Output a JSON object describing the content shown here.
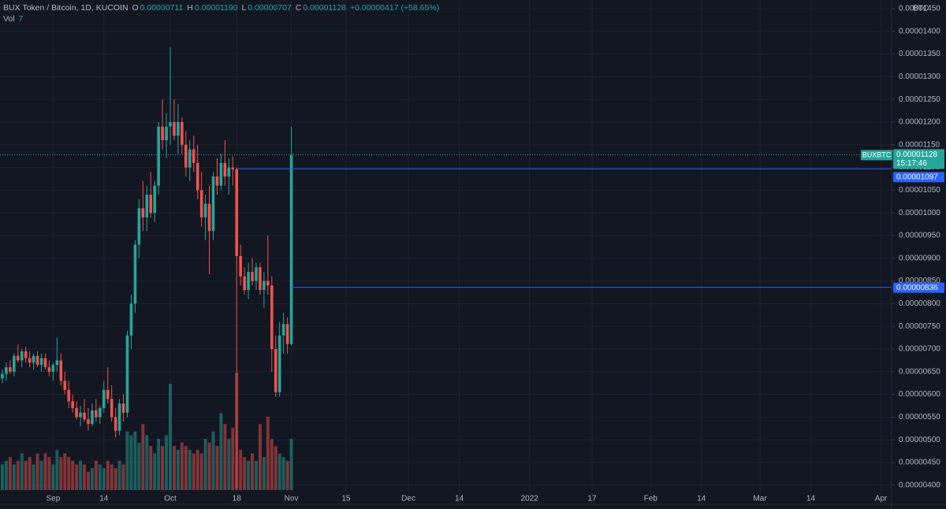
{
  "header": {
    "symbol": "BUX Token / Bitcoin, 1D, KUCOIN",
    "ohlc": [
      {
        "key": "O",
        "value": "0.00000711"
      },
      {
        "key": "H",
        "value": "0.00001190"
      },
      {
        "key": "L",
        "value": "0.00000707"
      },
      {
        "key": "C",
        "value": "0.00001128"
      }
    ],
    "change": "+0.00000417 (+58.65%)",
    "volume_label": "Vol",
    "volume_value": "7"
  },
  "chart_data": {
    "type": "candlestick",
    "unit": "BTC",
    "up_color": "#26a69a",
    "down_color": "#ef5350",
    "grid": true,
    "xlim": [
      -0.6,
      227.7
    ],
    "xticks": [
      {
        "value": 13,
        "label": "Sep"
      },
      {
        "value": 26,
        "label": "14"
      },
      {
        "value": 43,
        "label": "Oct"
      },
      {
        "value": 60,
        "label": "18"
      },
      {
        "value": 74,
        "label": "Nov"
      },
      {
        "value": 88,
        "label": "15"
      },
      {
        "value": 104,
        "label": "Dec"
      },
      {
        "value": 117,
        "label": "14"
      },
      {
        "value": 135,
        "label": "2022"
      },
      {
        "value": 151,
        "label": "17"
      },
      {
        "value": 166,
        "label": "Feb"
      },
      {
        "value": 179,
        "label": "14"
      },
      {
        "value": 194,
        "label": "Mar"
      },
      {
        "value": 207,
        "label": "14"
      },
      {
        "value": 225,
        "label": "Apr"
      }
    ],
    "ylim": [
      3.58e-06,
      1.469e-05
    ],
    "yticks": [
      {
        "value": 4e-06,
        "label": "0.00000400"
      },
      {
        "value": 4.5e-06,
        "label": "0.00000450"
      },
      {
        "value": 5e-06,
        "label": "0.00000500"
      },
      {
        "value": 5.5e-06,
        "label": "0.00000550"
      },
      {
        "value": 6e-06,
        "label": "0.00000600"
      },
      {
        "value": 6.5e-06,
        "label": "0.00000650"
      },
      {
        "value": 7e-06,
        "label": "0.00000700"
      },
      {
        "value": 7.5e-06,
        "label": "0.00000750"
      },
      {
        "value": 8e-06,
        "label": "0.00000800"
      },
      {
        "value": 8.5e-06,
        "label": "0.00000850"
      },
      {
        "value": 9e-06,
        "label": "0.00000900"
      },
      {
        "value": 9.5e-06,
        "label": "0.00000950"
      },
      {
        "value": 1e-05,
        "label": "0.00001000"
      },
      {
        "value": 1.05e-05,
        "label": "0.00001050"
      },
      {
        "value": 1.1e-05,
        "label": "0.00001100"
      },
      {
        "value": 1.15e-05,
        "label": "0.00001150"
      },
      {
        "value": 1.2e-05,
        "label": "0.00001200"
      },
      {
        "value": 1.25e-05,
        "label": "0.00001250"
      },
      {
        "value": 1.3e-05,
        "label": "0.00001300"
      },
      {
        "value": 1.35e-05,
        "label": "0.00001350"
      },
      {
        "value": 1.4e-05,
        "label": "0.00001400"
      },
      {
        "value": 1.45e-05,
        "label": "0.00001450"
      }
    ],
    "open": [
      6.35e-06,
      6.45e-06,
      6.6e-06,
      6.5e-06,
      6.85e-06,
      6.75e-06,
      6.95e-06,
      6.8e-06,
      6.7e-06,
      6.85e-06,
      6.65e-06,
      6.8e-06,
      6.6e-06,
      6.5e-06,
      6.65e-06,
      6.75e-06,
      6.3e-06,
      6.1e-06,
      5.85e-06,
      5.7e-06,
      5.5e-06,
      5.6e-06,
      5.45e-06,
      5.35e-06,
      5.65e-06,
      5.5e-06,
      5.7e-06,
      6.1e-06,
      5.9e-06,
      5.5e-06,
      5.2e-06,
      5.8e-06,
      5.6e-06,
      7.3e-06,
      8e-06,
      9.3e-06,
      1.01e-05,
      9.9e-06,
      1.04e-05,
      1e-05,
      1.06e-05,
      1.19e-05,
      1.16e-05,
      1.19e-05,
      1.2e-05,
      1.17e-05,
      1.2e-05,
      1.15e-05,
      1.1e-05,
      1.14e-05,
      1.11e-05,
      1.05e-05,
      9.9e-06,
      1.02e-05,
      9.6e-06,
      1.08e-05,
      1.06e-05,
      1.11e-05,
      1.08e-05,
      1.1e-05,
      1.096e-05,
      9.05e-06,
      8.6e-06,
      8.3e-06,
      8.7e-06,
      8.5e-06,
      8.8e-06,
      8.3e-06,
      8.5e-06,
      8.4e-06,
      7e-06,
      6.05e-06,
      7.3e-06,
      7.55e-06,
      7.11e-06
    ],
    "high": [
      6.55e-06,
      6.7e-06,
      6.75e-06,
      6.9e-06,
      7.1e-06,
      7e-06,
      7.05e-06,
      6.95e-06,
      6.9e-06,
      6.95e-06,
      6.9e-06,
      6.9e-06,
      6.75e-06,
      6.7e-06,
      7.25e-06,
      6.9e-06,
      6.5e-06,
      6.3e-06,
      6e-06,
      5.85e-06,
      5.75e-06,
      5.9e-06,
      5.7e-06,
      5.8e-06,
      5.9e-06,
      5.75e-06,
      6.3e-06,
      6.6e-06,
      6.2e-06,
      5.7e-06,
      5.9e-06,
      6e-06,
      7.4e-06,
      8.2e-06,
      9.4e-06,
      1.03e-05,
      1.07e-05,
      1.06e-05,
      1.09e-05,
      1.07e-05,
      1.2e-05,
      1.25e-05,
      1.22e-05,
      1.365e-05,
      1.25e-05,
      1.24e-05,
      1.21e-05,
      1.18e-05,
      1.16e-05,
      1.17e-05,
      1.15e-05,
      1.09e-05,
      1.04e-05,
      1.06e-05,
      1.09e-05,
      1.12e-05,
      1.13e-05,
      1.16e-05,
      1.12e-05,
      1.125e-05,
      1.1e-05,
      9.3e-06,
      8.8e-06,
      8.9e-06,
      9e-06,
      8.9e-06,
      8.9e-06,
      8.7e-06,
      9.5e-06,
      8.6e-06,
      7.3e-06,
      7.6e-06,
      7.8e-06,
      7.7e-06,
      1.19e-05
    ],
    "low": [
      6.25e-06,
      6.3e-06,
      6.45e-06,
      6.4e-06,
      6.7e-06,
      6.6e-06,
      6.7e-06,
      6.6e-06,
      6.55e-06,
      6.6e-06,
      6.5e-06,
      6.55e-06,
      6.4e-06,
      6.3e-06,
      6.5e-06,
      6.2e-06,
      6e-06,
      5.7e-06,
      5.6e-06,
      5.45e-06,
      5.3e-06,
      5.4e-06,
      5.2e-06,
      5.3e-06,
      5.4e-06,
      5.35e-06,
      5.6e-06,
      5.8e-06,
      5.4e-06,
      5.05e-06,
      5.1e-06,
      5.4e-06,
      5.5e-06,
      7e-06,
      7.8e-06,
      9e-06,
      9.6e-06,
      9.6e-06,
      9.9e-06,
      9.8e-06,
      1.04e-05,
      1.14e-05,
      1.12e-05,
      1.15e-05,
      1.16e-05,
      1.13e-05,
      1.13e-05,
      1.08e-05,
      1.07e-05,
      1.09e-05,
      1.03e-05,
      9.7e-06,
      9.4e-06,
      8.65e-06,
      9.4e-06,
      1.04e-05,
      1.05e-05,
      1.06e-05,
      1.04e-05,
      1.06e-05,
      3.93e-06,
      8.4e-06,
      8.2e-06,
      8.1e-06,
      8.4e-06,
      8.3e-06,
      8.2e-06,
      7.9e-06,
      8.2e-06,
      6.5e-06,
      5.95e-06,
      5.95e-06,
      6.9e-06,
      6.9e-06,
      7.07e-06
    ],
    "close": [
      6.45e-06,
      6.6e-06,
      6.5e-06,
      6.85e-06,
      6.75e-06,
      6.95e-06,
      6.8e-06,
      6.7e-06,
      6.85e-06,
      6.65e-06,
      6.8e-06,
      6.6e-06,
      6.5e-06,
      6.65e-06,
      6.75e-06,
      6.3e-06,
      6.1e-06,
      5.85e-06,
      5.7e-06,
      5.5e-06,
      5.6e-06,
      5.45e-06,
      5.35e-06,
      5.65e-06,
      5.5e-06,
      5.7e-06,
      6.1e-06,
      5.9e-06,
      5.5e-06,
      5.2e-06,
      5.8e-06,
      5.6e-06,
      7.3e-06,
      8e-06,
      9.3e-06,
      1.01e-05,
      9.9e-06,
      1.04e-05,
      1e-05,
      1.06e-05,
      1.19e-05,
      1.16e-05,
      1.19e-05,
      1.2e-05,
      1.17e-05,
      1.2e-05,
      1.15e-05,
      1.1e-05,
      1.14e-05,
      1.11e-05,
      1.05e-05,
      9.9e-06,
      1.02e-05,
      9.6e-06,
      1.08e-05,
      1.06e-05,
      1.11e-05,
      1.08e-05,
      1.1e-05,
      1.096e-05,
      9.05e-06,
      8.6e-06,
      8.3e-06,
      8.7e-06,
      8.5e-06,
      8.8e-06,
      8.3e-06,
      8.5e-06,
      8.4e-06,
      7e-06,
      6.05e-06,
      7.3e-06,
      7.55e-06,
      7.11e-06,
      1.128e-05
    ],
    "volume": [
      3.5,
      4,
      4.5,
      3.5,
      4,
      5,
      4,
      4.5,
      3.5,
      5,
      4,
      5,
      4.5,
      3.5,
      5.5,
      4.5,
      5,
      4.5,
      4,
      3.5,
      4,
      3.5,
      2.5,
      3,
      4,
      3.5,
      3,
      4,
      3.5,
      3,
      4,
      3.5,
      8,
      7.5,
      8,
      6.5,
      9,
      7.5,
      6,
      5,
      7,
      6,
      7.5,
      14.5,
      6,
      5.5,
      6.5,
      6,
      5.5,
      5,
      5.5,
      5,
      7,
      6.5,
      8,
      6,
      10.5,
      9,
      7,
      8.5,
      16,
      5.5,
      4.5,
      4,
      5,
      4,
      9,
      4.5,
      10,
      7,
      6,
      5,
      4.5,
      4,
      7
    ],
    "last_price": {
      "name": "BUXBTC",
      "value": 1.128e-05,
      "label": "0.00001128",
      "countdown": "15:17:46"
    },
    "price_lines": [
      {
        "value": 1.097e-05,
        "label": "0.00001097"
      },
      {
        "value": 8.36e-06,
        "label": "0.00000836"
      }
    ]
  }
}
